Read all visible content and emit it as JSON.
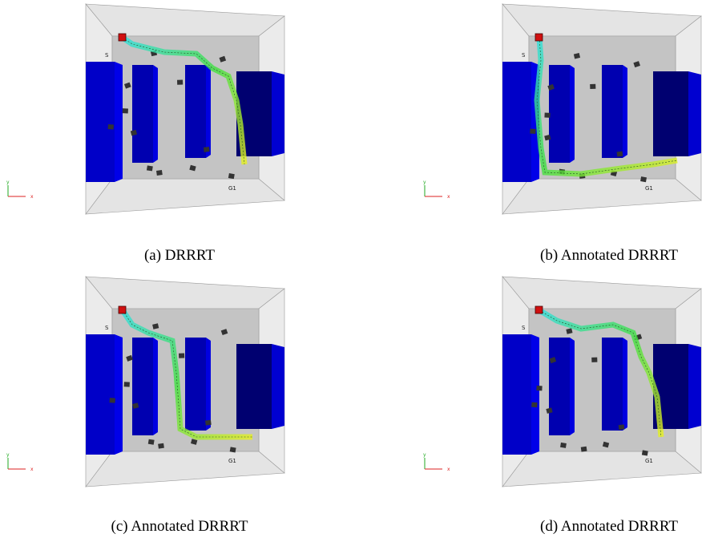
{
  "subfigures": [
    {
      "caption": "(a) DRRRT",
      "start_label": "S",
      "goal_label": "G1",
      "axis_x": "x",
      "axis_y": "y"
    },
    {
      "caption": "(b) Annotated DRRRT",
      "start_label": "S",
      "goal_label": "G1",
      "axis_x": "x",
      "axis_y": "y"
    },
    {
      "caption": "(c) Annotated DRRRT",
      "start_label": "S",
      "goal_label": "G1",
      "axis_x": "x",
      "axis_y": "y"
    },
    {
      "caption": "(d) Annotated DRRRT",
      "start_label": "S",
      "goal_label": "G1",
      "axis_x": "x",
      "axis_y": "y"
    }
  ]
}
